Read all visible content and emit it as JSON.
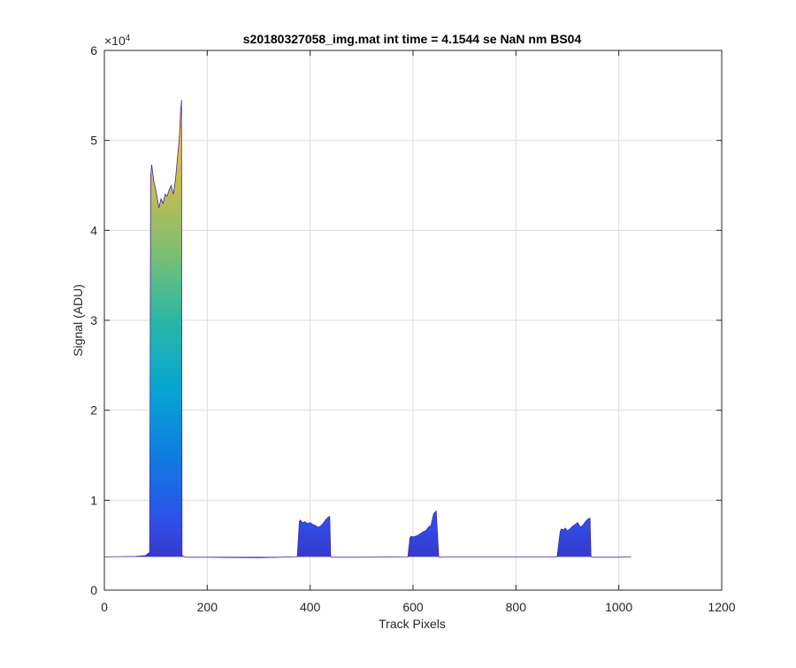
{
  "window": {
    "title": "s20180327058_img.mat int time = 4.1544 se  NaN nm BS04"
  },
  "chart_data": {
    "type": "area",
    "title": "s20180327058_img.mat int time = 4.1544 se  NaN nm BS04",
    "xlabel": "Track Pixels",
    "ylabel": "Signal (ADU)",
    "xlim": [
      0,
      1200
    ],
    "ylim": [
      0,
      60000
    ],
    "xticks": [
      0,
      200,
      400,
      600,
      800,
      1000,
      1200
    ],
    "xtick_labels": [
      "0",
      "200",
      "400",
      "600",
      "800",
      "1000",
      "1200"
    ],
    "yticks": [
      0,
      10000,
      20000,
      30000,
      40000,
      50000,
      60000
    ],
    "ytick_labels": [
      "0",
      "1",
      "2",
      "3",
      "4",
      "5",
      "6"
    ],
    "y_exponent_label": "×10",
    "y_exponent_power": "4",
    "grid": true,
    "legend": "none",
    "colormap": "parula",
    "colormap_stops": [
      "#3e26a8",
      "#2f4eeb",
      "#0f7ddf",
      "#07a6d2",
      "#2ab7a4",
      "#7cbf73",
      "#c6bc4d",
      "#f5c13a",
      "#f9fb14"
    ],
    "baseline": 3700,
    "series": [
      {
        "x": [
          0,
          60,
          80,
          88,
          90,
          92,
          96,
          100,
          104,
          106,
          110,
          114,
          118,
          122,
          126,
          130,
          134,
          138,
          142,
          146,
          148,
          150,
          151,
          152,
          156,
          160,
          200,
          300,
          375,
          379,
          381,
          385,
          390,
          395,
          400,
          405,
          410,
          415,
          420,
          425,
          430,
          435,
          438,
          440,
          442,
          446,
          500,
          590,
          594,
          596,
          600,
          605,
          610,
          615,
          620,
          625,
          630,
          635,
          640,
          645,
          650,
          652,
          654,
          656,
          660,
          700,
          800,
          880,
          886,
          888,
          892,
          896,
          900,
          905,
          910,
          915,
          920,
          925,
          930,
          935,
          940,
          944,
          946,
          948,
          952,
          1000,
          1024
        ],
        "y": [
          3700,
          3750,
          3850,
          4200,
          46000,
          47300,
          45500,
          44500,
          43200,
          42500,
          43500,
          43000,
          44000,
          43800,
          44500,
          45000,
          44000,
          45500,
          48000,
          50500,
          53000,
          54500,
          3900,
          3800,
          3700,
          3650,
          3650,
          3600,
          3700,
          7600,
          7800,
          7500,
          7600,
          7400,
          7500,
          7300,
          7200,
          7000,
          7100,
          7400,
          7800,
          8100,
          8200,
          3700,
          3650,
          3650,
          3650,
          3700,
          5800,
          6000,
          5900,
          6000,
          6100,
          6300,
          6500,
          6600,
          7000,
          7200,
          8500,
          8800,
          3700,
          3650,
          3650,
          3700,
          3700,
          3700,
          3700,
          3700,
          6500,
          6800,
          6700,
          6900,
          6600,
          6800,
          7100,
          7300,
          7500,
          7000,
          7200,
          7600,
          7900,
          8000,
          3700,
          3650,
          3650,
          3650,
          3700
        ]
      }
    ]
  }
}
